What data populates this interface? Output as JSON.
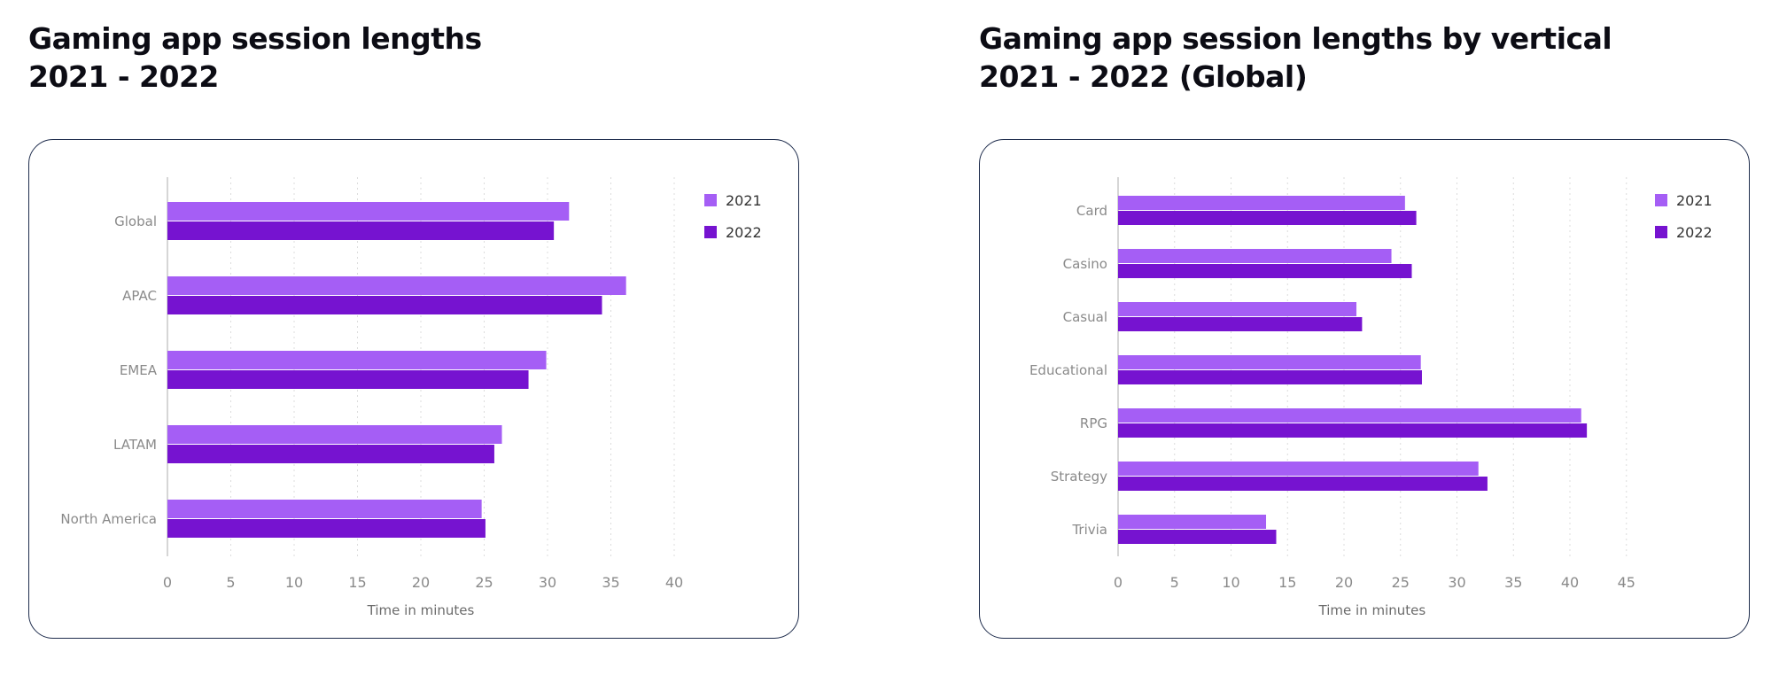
{
  "colors": {
    "s2021": "#a55ef5",
    "s2022": "#7613d0",
    "axis": "#c8c8c8",
    "tick_text": "#8a8a8a",
    "grid": "#dcdcdc"
  },
  "chart_data": [
    {
      "type": "bar",
      "orientation": "horizontal",
      "title_lines": [
        "Gaming app session lengths",
        "2021 - 2022"
      ],
      "categories": [
        "Global",
        "APAC",
        "EMEA",
        "LATAM",
        "North America"
      ],
      "series": [
        {
          "name": "2021",
          "values": [
            31.7,
            36.2,
            29.9,
            26.4,
            24.8
          ]
        },
        {
          "name": "2022",
          "values": [
            30.5,
            34.3,
            28.5,
            25.8,
            25.1
          ]
        }
      ],
      "xlabel": "Time in minutes",
      "xlim": [
        0,
        40
      ],
      "xticks": [
        0,
        5,
        10,
        15,
        20,
        25,
        30,
        35,
        40
      ],
      "grid": "vertical dotted",
      "legend": "top-right"
    },
    {
      "type": "bar",
      "orientation": "horizontal",
      "title_lines": [
        "Gaming app session lengths by vertical",
        "2021 - 2022 (Global)"
      ],
      "categories": [
        "Card",
        "Casino",
        "Casual",
        "Educational",
        "RPG",
        "Strategy",
        "Trivia"
      ],
      "series": [
        {
          "name": "2021",
          "values": [
            25.4,
            24.2,
            21.1,
            26.8,
            41.0,
            31.9,
            13.1
          ]
        },
        {
          "name": "2022",
          "values": [
            26.4,
            26.0,
            21.6,
            26.9,
            41.5,
            32.7,
            14.0
          ]
        }
      ],
      "xlabel": "Time in minutes",
      "xlim": [
        0,
        45
      ],
      "xticks": [
        0,
        5,
        10,
        15,
        20,
        25,
        30,
        35,
        40,
        45
      ],
      "grid": "vertical dotted",
      "legend": "top-right"
    }
  ]
}
